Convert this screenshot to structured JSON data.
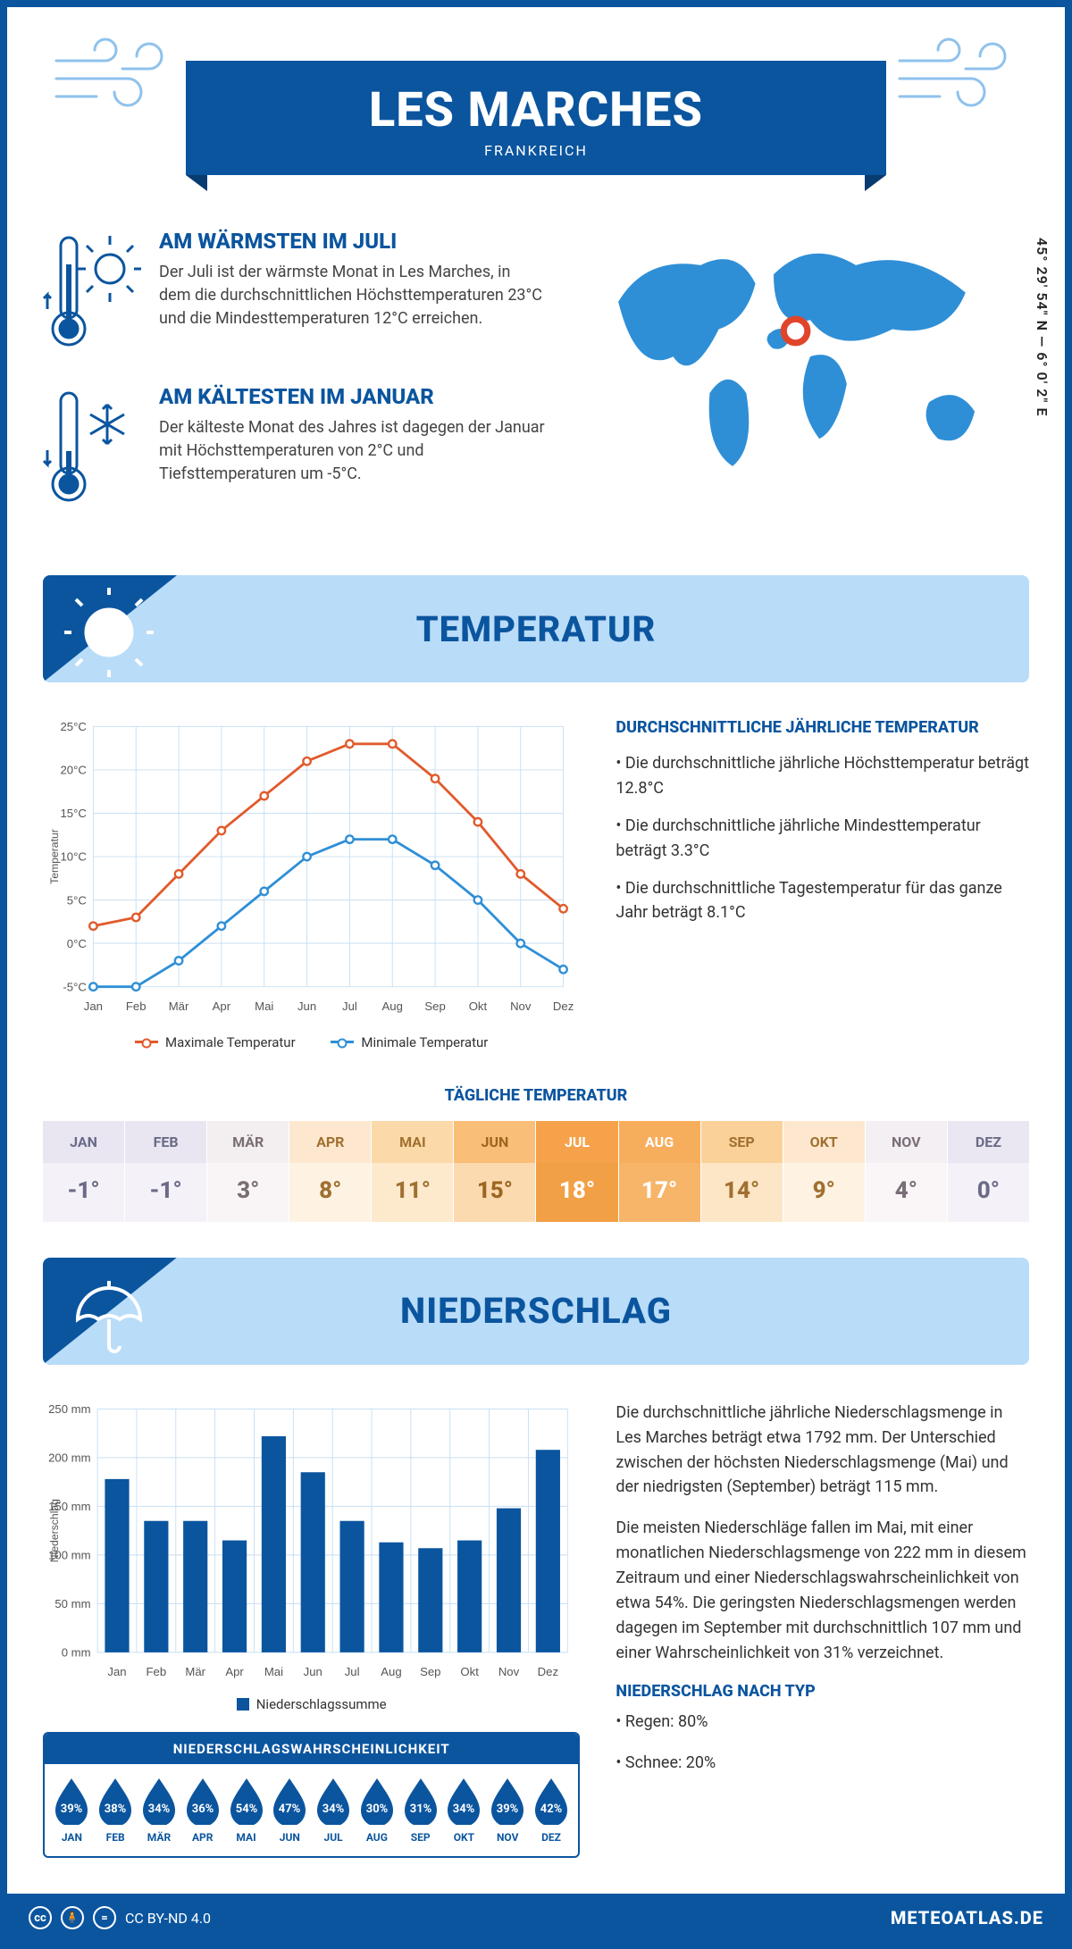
{
  "title": "LES MARCHES",
  "country": "FRANKREICH",
  "coords": "45° 29' 54\" N — 6° 0' 2\" E",
  "warm": {
    "heading": "AM WÄRMSTEN IM JULI",
    "text": "Der Juli ist der wärmste Monat in Les Marches, in dem die durchschnittlichen Höchsttemperaturen 23°C und die Mindesttemperaturen 12°C erreichen."
  },
  "cold": {
    "heading": "AM KÄLTESTEN IM JANUAR",
    "text": "Der kälteste Monat des Jahres ist dagegen der Januar mit Höchsttemperaturen von 2°C und Tiefsttemperaturen um -5°C."
  },
  "section_temp": "TEMPERATUR",
  "section_precip": "NIEDERSCHLAG",
  "temp_chart": {
    "ylabel": "Temperatur",
    "ymin": -5,
    "ymax": 25,
    "ystep": 5,
    "ysuffix": "°C",
    "months": [
      "Jan",
      "Feb",
      "Mär",
      "Apr",
      "Mai",
      "Jun",
      "Jul",
      "Aug",
      "Sep",
      "Okt",
      "Nov",
      "Dez"
    ],
    "max": {
      "label": "Maximale Temperatur",
      "color": "#e15a2b",
      "values": [
        2,
        3,
        8,
        13,
        17,
        21,
        23,
        23,
        19,
        14,
        8,
        4
      ]
    },
    "min": {
      "label": "Minimale Temperatur",
      "color": "#2f8fd6",
      "values": [
        -5,
        -5,
        -2,
        2,
        6,
        10,
        12,
        12,
        9,
        5,
        0,
        -3
      ]
    }
  },
  "temp_info": {
    "heading": "DURCHSCHNITTLICHE JÄHRLICHE TEMPERATUR",
    "bullets": [
      "• Die durchschnittliche jährliche Höchsttemperatur beträgt 12.8°C",
      "• Die durchschnittliche jährliche Mindesttemperatur beträgt 3.3°C",
      "• Die durchschnittliche Tagestemperatur für das ganze Jahr beträgt 8.1°C"
    ]
  },
  "daily": {
    "heading": "TÄGLICHE TEMPERATUR",
    "months": [
      "JAN",
      "FEB",
      "MÄR",
      "APR",
      "MAI",
      "JUN",
      "JUL",
      "AUG",
      "SEP",
      "OKT",
      "NOV",
      "DEZ"
    ],
    "values": [
      "-1°",
      "-1°",
      "3°",
      "8°",
      "11°",
      "15°",
      "18°",
      "17°",
      "14°",
      "9°",
      "4°",
      "0°"
    ],
    "head_colors": [
      "#e9e6f2",
      "#e9e6f2",
      "#f3eef0",
      "#fde8cf",
      "#fcd9a8",
      "#f9be78",
      "#f5a24a",
      "#f7ae5c",
      "#fbd19a",
      "#fde8cf",
      "#f4eff2",
      "#eae7f2"
    ],
    "body_colors": [
      "#f4f2f8",
      "#f4f2f8",
      "#f9f5f7",
      "#fef2e3",
      "#fdeacd",
      "#fcdab0",
      "#facb91",
      "#fbd29e",
      "#fde6c6",
      "#fef2e3",
      "#faf6f8",
      "#f4f2f8"
    ],
    "text_colors": [
      "#6b6b88",
      "#6b6b88",
      "#7a6e70",
      "#a07030",
      "#a07030",
      "#9c6520",
      "#ffffff",
      "#ffffff",
      "#a07030",
      "#a07030",
      "#7a6e78",
      "#6b6b88"
    ],
    "val_bg_jul": "#f2a045",
    "val_bg_aug": "#f6b569"
  },
  "precip_chart": {
    "ylabel": "Niederschlag",
    "ymin": 0,
    "ymax": 250,
    "ystep": 50,
    "ysuffix": " mm",
    "months": [
      "Jan",
      "Feb",
      "Mär",
      "Apr",
      "Mai",
      "Jun",
      "Jul",
      "Aug",
      "Sep",
      "Okt",
      "Nov",
      "Dez"
    ],
    "color": "#0b559f",
    "legend": "Niederschlagssumme",
    "values": [
      178,
      135,
      135,
      115,
      222,
      185,
      135,
      113,
      107,
      115,
      148,
      208
    ]
  },
  "precip_text": {
    "p1": "Die durchschnittliche jährliche Niederschlagsmenge in Les Marches beträgt etwa 1792 mm. Der Unterschied zwischen der höchsten Niederschlagsmenge (Mai) und der niedrigsten (September) beträgt 115 mm.",
    "p2": "Die meisten Niederschläge fallen im Mai, mit einer monatlichen Niederschlagsmenge von 222 mm in diesem Zeitraum und einer Niederschlagswahrscheinlichkeit von etwa 54%. Die geringsten Niederschlagsmengen werden dagegen im September mit durchschnittlich 107 mm und einer Wahrscheinlichkeit von 31% verzeichnet.",
    "heading": "NIEDERSCHLAG NACH TYP",
    "rain": "• Regen: 80%",
    "snow": "• Schnee: 20%"
  },
  "prob": {
    "heading": "NIEDERSCHLAGSWAHRSCHEINLICHKEIT",
    "months": [
      "JAN",
      "FEB",
      "MÄR",
      "APR",
      "MAI",
      "JUN",
      "JUL",
      "AUG",
      "SEP",
      "OKT",
      "NOV",
      "DEZ"
    ],
    "values": [
      "39%",
      "38%",
      "34%",
      "36%",
      "54%",
      "47%",
      "34%",
      "30%",
      "31%",
      "34%",
      "39%",
      "42%"
    ],
    "color": "#0b559f"
  },
  "footer": {
    "license": "CC BY-ND 4.0",
    "site": "METEOATLAS.DE"
  }
}
